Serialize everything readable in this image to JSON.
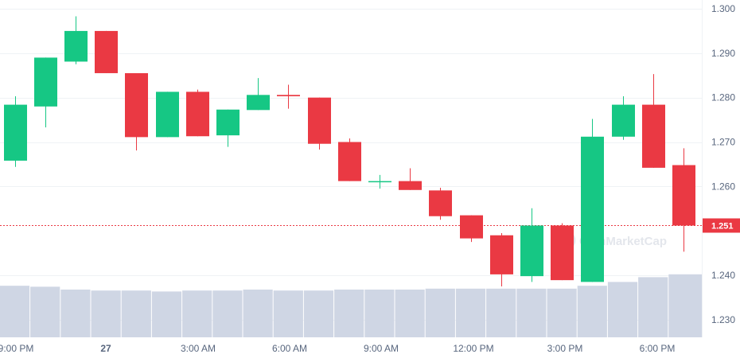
{
  "chart_data": {
    "type": "candlestick",
    "x_tick_labels": [
      "9:00 PM",
      "27",
      "3:00 AM",
      "6:00 AM",
      "9:00 AM",
      "12:00 PM",
      "3:00 PM",
      "6:00 PM"
    ],
    "y_tick_labels": [
      "1.300",
      "1.290",
      "1.280",
      "1.270",
      "1.260",
      "1.240",
      "1.230"
    ],
    "y_range": [
      1.2255,
      1.3015
    ],
    "current_price": 1.2512,
    "current_price_label": "1.251",
    "candles": [
      {
        "open": 1.2658,
        "high": 1.2803,
        "low": 1.2644,
        "close": 1.2784
      },
      {
        "open": 1.278,
        "high": 1.289,
        "low": 1.2733,
        "close": 1.289
      },
      {
        "open": 1.2881,
        "high": 1.2983,
        "low": 1.2875,
        "close": 1.295
      },
      {
        "open": 1.295,
        "high": 1.295,
        "low": 1.2855,
        "close": 1.2855
      },
      {
        "open": 1.2855,
        "high": 1.2855,
        "low": 1.2681,
        "close": 1.2711
      },
      {
        "open": 1.2711,
        "high": 1.2813,
        "low": 1.2711,
        "close": 1.2813
      },
      {
        "open": 1.2813,
        "high": 1.2818,
        "low": 1.2713,
        "close": 1.2713
      },
      {
        "open": 1.2715,
        "high": 1.2773,
        "low": 1.2689,
        "close": 1.2773
      },
      {
        "open": 1.2772,
        "high": 1.2844,
        "low": 1.2772,
        "close": 1.2806
      },
      {
        "open": 1.2806,
        "high": 1.2829,
        "low": 1.2775,
        "close": 1.2803
      },
      {
        "open": 1.28,
        "high": 1.28,
        "low": 1.2683,
        "close": 1.2696
      },
      {
        "open": 1.27,
        "high": 1.2708,
        "low": 1.2612,
        "close": 1.2612
      },
      {
        "open": 1.2612,
        "high": 1.2626,
        "low": 1.2595,
        "close": 1.2612
      },
      {
        "open": 1.2612,
        "high": 1.2641,
        "low": 1.2592,
        "close": 1.2592
      },
      {
        "open": 1.2591,
        "high": 1.2597,
        "low": 1.2525,
        "close": 1.2533
      },
      {
        "open": 1.2535,
        "high": 1.2535,
        "low": 1.2475,
        "close": 1.2483
      },
      {
        "open": 1.249,
        "high": 1.2495,
        "low": 1.2375,
        "close": 1.2402
      },
      {
        "open": 1.2398,
        "high": 1.2551,
        "low": 1.2385,
        "close": 1.2512
      },
      {
        "open": 1.2512,
        "high": 1.2517,
        "low": 1.2389,
        "close": 1.2389
      },
      {
        "open": 1.2385,
        "high": 1.2752,
        "low": 1.2385,
        "close": 1.2712
      },
      {
        "open": 1.2712,
        "high": 1.2803,
        "low": 1.2705,
        "close": 1.2784
      },
      {
        "open": 1.2784,
        "high": 1.2853,
        "low": 1.2642,
        "close": 1.2642
      },
      {
        "open": 1.2648,
        "high": 1.2686,
        "low": 1.2453,
        "close": 1.2512
      }
    ],
    "volume_level": [
      0.54,
      0.53,
      0.5,
      0.49,
      0.49,
      0.48,
      0.49,
      0.49,
      0.5,
      0.49,
      0.49,
      0.5,
      0.5,
      0.5,
      0.51,
      0.51,
      0.51,
      0.51,
      0.51,
      0.54,
      0.58,
      0.63,
      0.66
    ],
    "colors": {
      "up": "#16c784",
      "down": "#ea3943",
      "volume": "#cfd6e4",
      "grid": "#eff2f5",
      "price_line": "#ea3943",
      "price_tag": "#ea3943"
    }
  },
  "watermark": {
    "text": "CoinMarketCap",
    "icon": "coinmarketcap-logo-icon"
  }
}
